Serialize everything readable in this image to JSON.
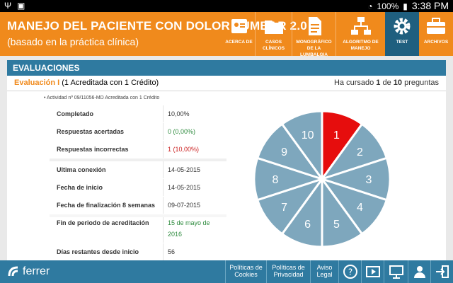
{
  "statusbar": {
    "battery": "100%",
    "time": "3:38 PM"
  },
  "header": {
    "title": "MANEJO DEL PACIENTE CON DOLOR LUMBAR 2.0",
    "subtitle": "(basado en la práctica clínica)",
    "nav": [
      {
        "label": "ACERCA DE",
        "icon": "id-card-icon"
      },
      {
        "label": "CASOS CLÍNICOS",
        "icon": "folder-icon"
      },
      {
        "label": "MONOGRÁFICO DE LA LUMBALGIA",
        "icon": "document-icon"
      },
      {
        "label": "ALGORITMO DE MANEJO",
        "icon": "flowchart-icon"
      },
      {
        "label": "TEST",
        "icon": "gear-icon"
      },
      {
        "label": "ARCHIVOS",
        "icon": "briefcase-icon"
      }
    ]
  },
  "panel": {
    "title": "EVALUACIONES",
    "eval_name": "Evaluación I",
    "eval_credit": " (1 Acreditada con 1 Crédito)",
    "progress_prefix": "Ha cursado ",
    "progress_done": "1",
    "progress_mid": " de ",
    "progress_total": "10",
    "progress_suffix": " preguntas",
    "activity": "Actividad nº 09/11056-MD Acreditada con 1 Crédito",
    "stats_a": [
      {
        "k": "Completado",
        "v": "10,00%",
        "tone": ""
      },
      {
        "k": "Respuestas acertadas",
        "v": "0 (0,00%)",
        "tone": "green"
      },
      {
        "k": "Respuestas incorrectas",
        "v": "1 (10,00%)",
        "tone": "red"
      }
    ],
    "stats_b": [
      {
        "k": "Ultima conexión",
        "v": "14-05-2015",
        "tone": ""
      },
      {
        "k": "Fecha de inicio",
        "v": "14-05-2015",
        "tone": ""
      },
      {
        "k": "Fecha de finalización 8 semanas",
        "v": "09-07-2015",
        "tone": ""
      },
      {
        "k": "Fin de periodo de acreditación",
        "v": "15 de mayo de 2016",
        "tone": "green"
      },
      {
        "k": "Días restantes desde inicio",
        "v": "56",
        "tone": ""
      }
    ],
    "questions": {
      "labels": [
        "1",
        "2",
        "3",
        "4",
        "5",
        "6",
        "7",
        "8",
        "9",
        "10"
      ],
      "states": [
        "wrong",
        "pending",
        "pending",
        "pending",
        "pending",
        "pending",
        "pending",
        "pending",
        "pending",
        "pending"
      ],
      "colors": {
        "wrong": "#e60d0d",
        "pending": "#7ea7bd"
      }
    }
  },
  "footer": {
    "brand": "ferrer",
    "links": [
      "Políticas de Cookies",
      "Políticas de Privacidad",
      "Aviso Legal"
    ],
    "icons": [
      "help-icon",
      "play-icon",
      "presentation-icon",
      "user-icon",
      "logout-icon"
    ]
  }
}
